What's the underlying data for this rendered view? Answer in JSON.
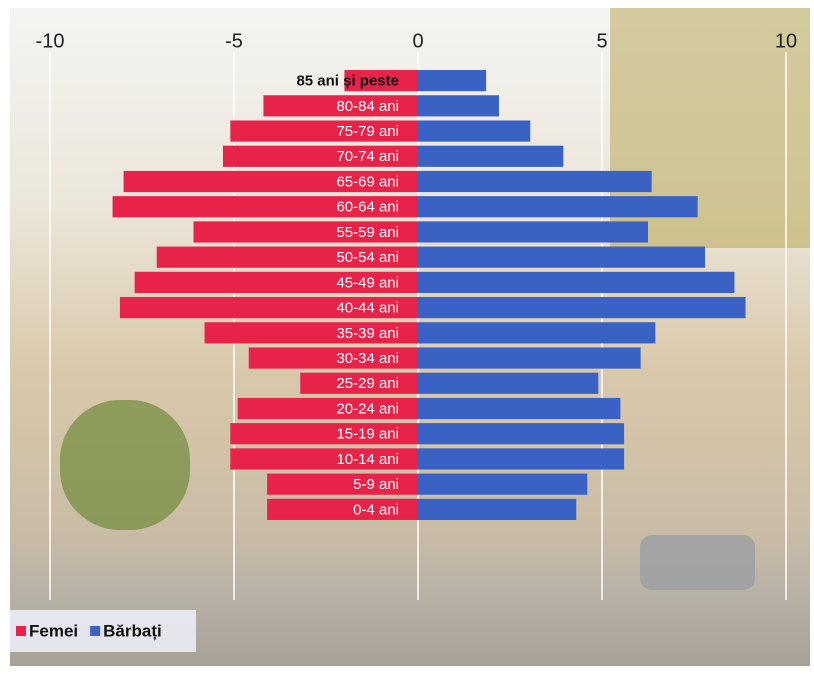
{
  "chart_data": {
    "type": "bar",
    "orientation": "horizontal",
    "stacked": true,
    "categories": [
      "85 ani și peste",
      "80-84 ani",
      "75-79 ani",
      "70-74 ani",
      "65-69 ani",
      "60-64 ani",
      "55-59 ani",
      "50-54 ani",
      "45-49 ani",
      "40-44 ani",
      "35-39 ani",
      "30-34 ani",
      "25-29 ani",
      "20-24 ani",
      "15-19 ani",
      "10-14 ani",
      "5-9 ani",
      "0-4 ani"
    ],
    "series": [
      {
        "name": "Femei",
        "color": "#e8234a",
        "values": [
          -2.0,
          -4.2,
          -5.1,
          -5.3,
          -8.0,
          -8.3,
          -6.1,
          -7.1,
          -7.7,
          -8.1,
          -5.8,
          -4.6,
          -3.2,
          -4.9,
          -5.1,
          -5.1,
          -4.1,
          -4.1
        ]
      },
      {
        "name": "Bărbați",
        "color": "#3a62c4",
        "values": [
          1.85,
          2.2,
          3.05,
          3.95,
          6.35,
          7.6,
          6.25,
          7.8,
          8.6,
          8.9,
          6.45,
          6.05,
          4.9,
          5.5,
          5.6,
          5.6,
          4.6,
          4.3
        ]
      }
    ],
    "xlim": [
      -10,
      10
    ],
    "xticks": [
      -10,
      -5,
      0,
      5,
      10
    ],
    "grid": true,
    "legend": "lower left"
  }
}
